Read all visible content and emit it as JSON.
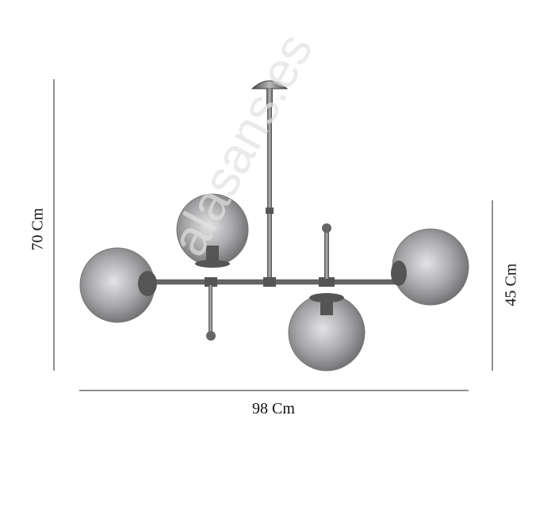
{
  "dimensions": {
    "height_total": "70 Cm",
    "height_body": "45 Cm",
    "width": "98 Cm"
  },
  "watermark": "alasans.es",
  "colors": {
    "metal": "#6e6e70",
    "glass": "#9a9a9c",
    "line": "#222222"
  }
}
